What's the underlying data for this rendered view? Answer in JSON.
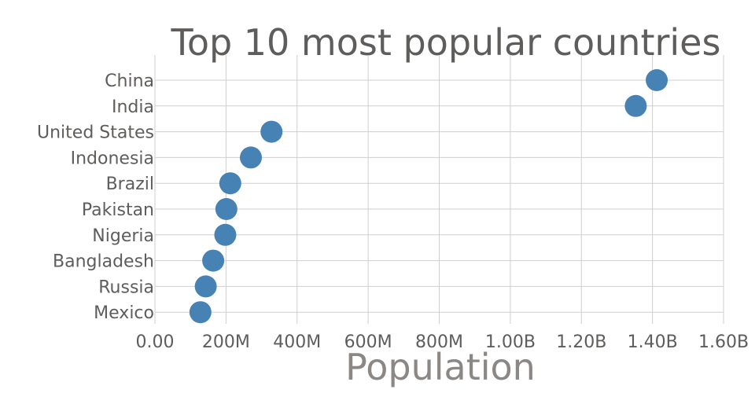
{
  "chart_data": {
    "type": "scatter",
    "title": "Top 10 most popular countries",
    "xlabel": "Population",
    "ylabel": "",
    "xlim": [
      0,
      1600000000
    ],
    "x_ticks": [
      {
        "value": 0,
        "label": "0.00"
      },
      {
        "value": 200000000,
        "label": "200M"
      },
      {
        "value": 400000000,
        "label": "400M"
      },
      {
        "value": 600000000,
        "label": "600M"
      },
      {
        "value": 800000000,
        "label": "800M"
      },
      {
        "value": 1000000000,
        "label": "1.00B"
      },
      {
        "value": 1200000000,
        "label": "1.20B"
      },
      {
        "value": 1400000000,
        "label": "1.40B"
      },
      {
        "value": 1600000000,
        "label": "1.60B"
      }
    ],
    "categories": [
      "China",
      "India",
      "United States",
      "Indonesia",
      "Brazil",
      "Pakistan",
      "Nigeria",
      "Bangladesh",
      "Russia",
      "Mexico"
    ],
    "values": [
      1412000000,
      1353000000,
      328000000,
      270000000,
      212000000,
      201000000,
      198000000,
      164000000,
      143000000,
      128000000
    ],
    "grid": true,
    "point_color": "#4682b4"
  }
}
